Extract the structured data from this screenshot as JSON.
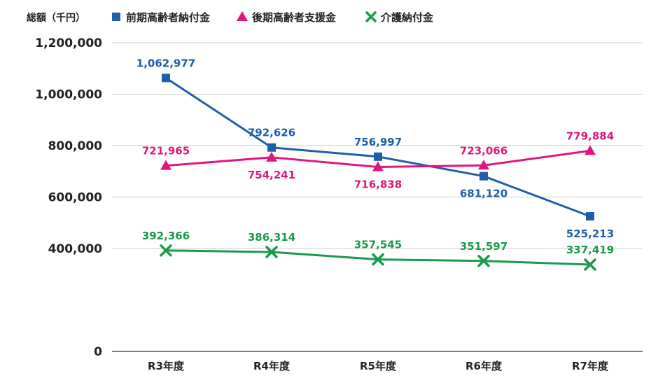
{
  "chart_data": {
    "type": "line",
    "unit_label": "総額（千円）",
    "categories": [
      "R3年度",
      "R4年度",
      "R5年度",
      "R6年度",
      "R7年度"
    ],
    "ylim": [
      0,
      1200000
    ],
    "yticks": [
      "0",
      "400,000",
      "600,000",
      "800,000",
      "1,000,000",
      "1,200,000"
    ],
    "ytick_values": [
      0,
      400000,
      600000,
      800000,
      1000000,
      1200000
    ],
    "grid": true,
    "legend_position": "top-left",
    "series": [
      {
        "name": "前期高齢者納付金",
        "marker": "square",
        "color": "#1f5ea8",
        "values": [
          1062977,
          792626,
          756997,
          681120,
          525213
        ],
        "labels": [
          "1,062,977",
          "792,626",
          "756,997",
          "681,120",
          "525,213"
        ],
        "label_positions": [
          "above",
          "above",
          "above",
          "below",
          "below"
        ]
      },
      {
        "name": "後期高齢者支援金",
        "marker": "triangle",
        "color": "#e0157f",
        "values": [
          721965,
          754241,
          716838,
          723066,
          779884
        ],
        "labels": [
          "721,965",
          "754,241",
          "716,838",
          "723,066",
          "779,884"
        ],
        "label_positions": [
          "above",
          "below",
          "below",
          "above",
          "above"
        ]
      },
      {
        "name": "介護納付金",
        "marker": "cross",
        "color": "#1a9a4a",
        "values": [
          392366,
          386314,
          357545,
          351597,
          337419
        ],
        "labels": [
          "392,366",
          "386,314",
          "357,545",
          "351,597",
          "337,419"
        ],
        "label_positions": [
          "above",
          "above",
          "above",
          "above",
          "above"
        ]
      }
    ]
  }
}
